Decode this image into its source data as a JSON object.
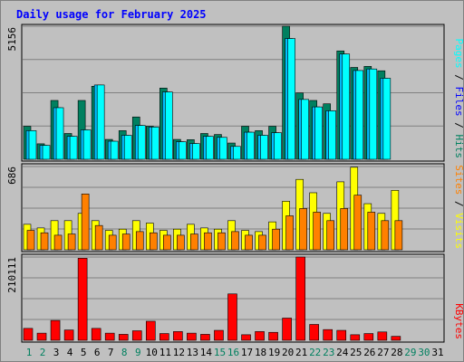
{
  "chart_data": [
    {
      "type": "bar",
      "title": "Daily usage for February 2025",
      "panel": "hits-files-pages",
      "ymax_label": "5156",
      "ylim": [
        0,
        5156
      ],
      "categories": [
        "1",
        "2",
        "3",
        "4",
        "5",
        "6",
        "7",
        "8",
        "9",
        "10",
        "11",
        "12",
        "13",
        "14",
        "15",
        "16",
        "17",
        "18",
        "19",
        "20",
        "21",
        "22",
        "23",
        "24",
        "25",
        "26",
        "27",
        "28",
        "29",
        "30",
        "31"
      ],
      "weekend_days": [
        "1",
        "2",
        "8",
        "9",
        "15",
        "16",
        "22",
        "23",
        "29",
        "30"
      ],
      "side_labels": [
        "Hits",
        "Files",
        "Pages"
      ],
      "series": [
        {
          "name": "Hits",
          "color": "#00805f",
          "values": [
            1280,
            600,
            2280,
            1000,
            2280,
            2830,
            770,
            1110,
            1640,
            1280,
            2760,
            770,
            760,
            1000,
            960,
            630,
            1280,
            1110,
            1280,
            5156,
            2570,
            2280,
            2150,
            4200,
            3560,
            3600,
            3430,
            0,
            0,
            0,
            0
          ]
        },
        {
          "name": "Files",
          "color": "#00bfff",
          "values": [
            1110,
            540,
            2000,
            890,
            1140,
            2880,
            700,
            930,
            1310,
            1250,
            2610,
            680,
            610,
            890,
            850,
            500,
            1050,
            930,
            1030,
            4680,
            2320,
            2030,
            1880,
            4080,
            3440,
            3500,
            3140,
            0,
            0,
            0,
            0
          ]
        },
        {
          "name": "Pages",
          "color": "#00ffff",
          "values": [
            1110,
            540,
            2000,
            890,
            1140,
            2880,
            700,
            930,
            1310,
            1250,
            2610,
            680,
            610,
            890,
            850,
            500,
            1050,
            930,
            1030,
            4680,
            2320,
            2030,
            1880,
            4080,
            3440,
            3500,
            3140,
            0,
            0,
            0,
            0
          ]
        }
      ]
    },
    {
      "type": "bar",
      "panel": "visits-sites",
      "ymax_label": "686",
      "ylim": [
        0,
        686
      ],
      "categories": [
        "1",
        "2",
        "3",
        "4",
        "5",
        "6",
        "7",
        "8",
        "9",
        "10",
        "11",
        "12",
        "13",
        "14",
        "15",
        "16",
        "17",
        "18",
        "19",
        "20",
        "21",
        "22",
        "23",
        "24",
        "25",
        "26",
        "27",
        "28",
        "29",
        "30",
        "31"
      ],
      "side_labels": [
        "Visits",
        "Sites"
      ],
      "series": [
        {
          "name": "Visits",
          "color": "#ffff00",
          "values": [
            210,
            180,
            240,
            240,
            300,
            240,
            160,
            170,
            240,
            220,
            160,
            170,
            210,
            180,
            170,
            240,
            160,
            150,
            230,
            400,
            580,
            470,
            300,
            560,
            680,
            380,
            300,
            490,
            0,
            0,
            0
          ]
        },
        {
          "name": "Sites",
          "color": "#ff8000",
          "values": [
            160,
            140,
            120,
            130,
            460,
            200,
            120,
            130,
            150,
            140,
            120,
            120,
            130,
            140,
            140,
            150,
            120,
            120,
            170,
            280,
            340,
            310,
            240,
            340,
            450,
            310,
            240,
            240,
            0,
            0,
            0
          ]
        }
      ]
    },
    {
      "type": "bar",
      "panel": "kbytes",
      "ymax_label": "210111",
      "ylim": [
        0,
        210111
      ],
      "categories": [
        "1",
        "2",
        "3",
        "4",
        "5",
        "6",
        "7",
        "8",
        "9",
        "10",
        "11",
        "12",
        "13",
        "14",
        "15",
        "16",
        "17",
        "18",
        "19",
        "20",
        "21",
        "22",
        "23",
        "24",
        "25",
        "26",
        "27",
        "28",
        "29",
        "30",
        "31"
      ],
      "side_labels": [
        "KBytes"
      ],
      "series": [
        {
          "name": "KBytes",
          "color": "#ff0000",
          "values": [
            30000,
            18000,
            50000,
            26000,
            207000,
            30000,
            18000,
            15000,
            24000,
            48000,
            17000,
            22000,
            18000,
            15000,
            25000,
            117000,
            14000,
            22000,
            20000,
            56000,
            210111,
            40000,
            27000,
            25000,
            14000,
            17000,
            21000,
            10000,
            0,
            0,
            0
          ]
        }
      ]
    }
  ]
}
